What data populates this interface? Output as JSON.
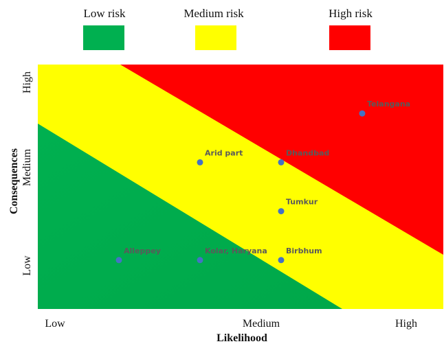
{
  "legend": {
    "items": [
      {
        "label": "Low risk",
        "color": "#00b050"
      },
      {
        "label": "Medium risk",
        "color": "#ffff00"
      },
      {
        "label": "High risk",
        "color": "#ff0000"
      }
    ]
  },
  "chart_data": {
    "type": "scatter",
    "title": "",
    "xlabel": "Likelihood",
    "ylabel": "Consequences",
    "x_ticks": [
      "Low",
      "Medium",
      "High"
    ],
    "y_ticks": [
      "Low",
      "Medium",
      "High"
    ],
    "xlim": [
      0,
      5
    ],
    "ylim": [
      0,
      5
    ],
    "grid": false,
    "legend_position": "top",
    "point_color": "#4472c4",
    "zone_colors": {
      "low": "#00b050",
      "medium": "#ffff00",
      "high": "#ff0000"
    },
    "points": [
      {
        "label": "Alleppey",
        "x": 1,
        "y": 1
      },
      {
        "label": "Kolar, Haryana",
        "x": 2,
        "y": 1
      },
      {
        "label": "Birbhum",
        "x": 3,
        "y": 1
      },
      {
        "label": "Tumkur",
        "x": 3,
        "y": 2
      },
      {
        "label": "Arid part",
        "x": 2,
        "y": 3
      },
      {
        "label": "Dhandbad",
        "x": 3,
        "y": 3
      },
      {
        "label": "Telangana",
        "x": 4,
        "y": 4
      }
    ]
  }
}
